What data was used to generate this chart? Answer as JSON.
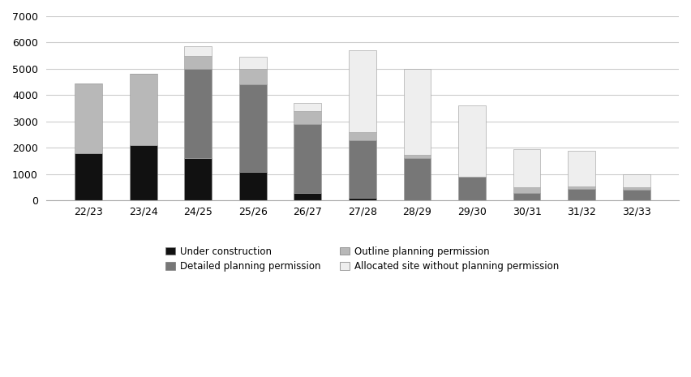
{
  "categories": [
    "22/23",
    "23/24",
    "24/25",
    "25/26",
    "26/27",
    "27/28",
    "28/29",
    "29/30",
    "30/31",
    "31/32",
    "32/33"
  ],
  "under_construction": [
    1800,
    2100,
    1600,
    1100,
    300,
    100,
    0,
    0,
    0,
    0,
    0
  ],
  "detailed_planning_permission": [
    0,
    0,
    3400,
    3300,
    2600,
    2200,
    1600,
    900,
    300,
    450,
    400
  ],
  "outline_planning_permission": [
    2650,
    2700,
    500,
    600,
    500,
    300,
    150,
    0,
    200,
    100,
    100
  ],
  "allocated_site_no_permission": [
    0,
    0,
    350,
    450,
    300,
    3100,
    3250,
    2700,
    1450,
    1350,
    500
  ],
  "colors": {
    "under_construction": "#111111",
    "detailed_planning_permission": "#777777",
    "outline_planning_permission": "#b8b8b8",
    "allocated_site_no_permission": "#eeeeee"
  },
  "legend_labels": [
    "Under construction",
    "Detailed planning permission",
    "Outline planning permission",
    "Allocated site without planning permission"
  ],
  "ylim": [
    0,
    7000
  ],
  "yticks": [
    0,
    1000,
    2000,
    3000,
    4000,
    5000,
    6000,
    7000
  ],
  "background_color": "#ffffff",
  "grid_color": "#cccccc"
}
